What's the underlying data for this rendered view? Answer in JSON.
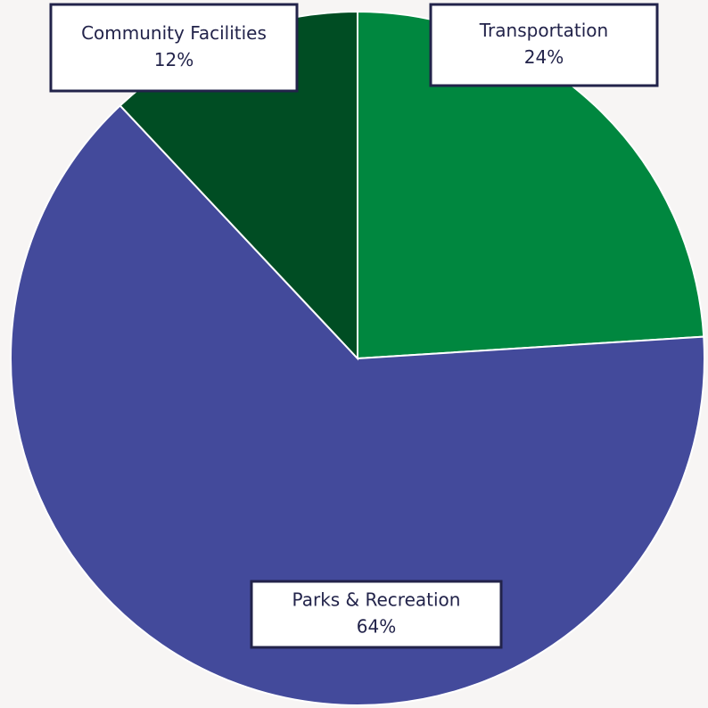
{
  "chart_data": {
    "type": "pie",
    "categories": [
      "Transportation",
      "Parks & Recreation",
      "Community Facilities"
    ],
    "values": [
      24,
      64,
      12
    ],
    "value_labels": [
      "24%",
      "64%",
      "12%"
    ],
    "colors": [
      "#00873f",
      "#434a9b",
      "#004d23"
    ]
  }
}
